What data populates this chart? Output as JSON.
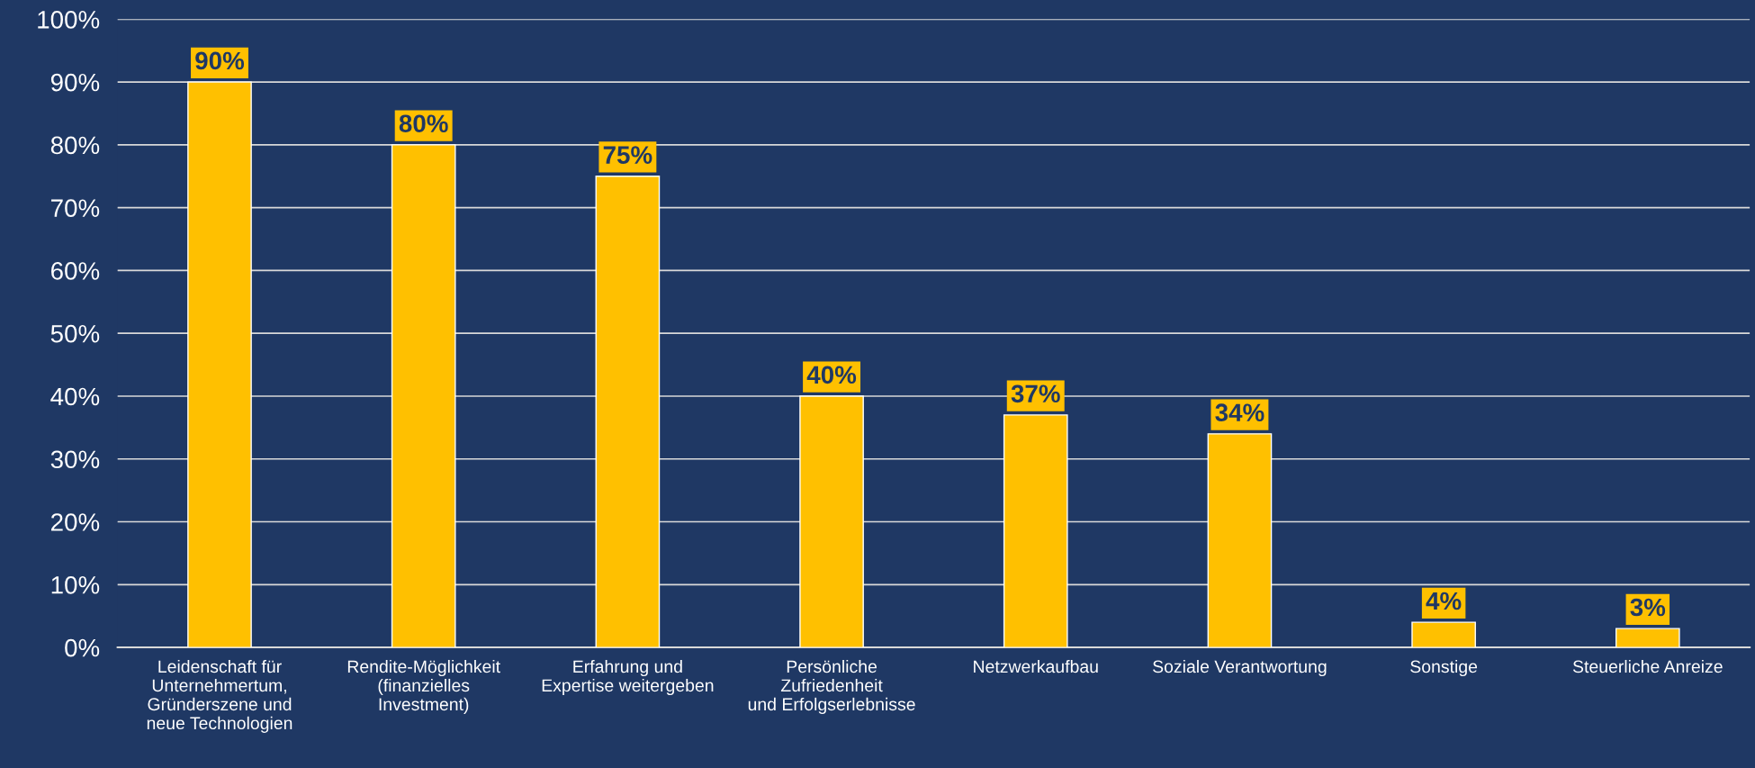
{
  "chart_data": {
    "type": "bar",
    "categories": [
      "Leidenschaft für\nUnternehmertum,\nGründerszene und\nneue Technologien",
      "Rendite-Möglichkeit\n(finanzielles\nInvestment)",
      "Erfahrung und\nExpertise weitergeben",
      "Persönliche\nZufriedenheit\nund Erfolgserlebnisse",
      "Netzwerkaufbau",
      "Soziale Verantwortung",
      "Sonstige",
      "Steuerliche Anreize"
    ],
    "values": [
      90,
      80,
      75,
      40,
      37,
      34,
      4,
      3
    ],
    "value_labels": [
      "90%",
      "80%",
      "75%",
      "40%",
      "37%",
      "34%",
      "4%",
      "3%"
    ],
    "color": "#ffc000",
    "ylim": [
      0,
      100
    ],
    "yticks": [
      {
        "value": 0,
        "label": "0%"
      },
      {
        "value": 10,
        "label": "10%"
      },
      {
        "value": 20,
        "label": "20%"
      },
      {
        "value": 30,
        "label": "30%"
      },
      {
        "value": 40,
        "label": "40%"
      },
      {
        "value": 50,
        "label": "50%"
      },
      {
        "value": 60,
        "label": "60%"
      },
      {
        "value": 70,
        "label": "70%"
      },
      {
        "value": 80,
        "label": "80%"
      },
      {
        "value": 90,
        "label": "90%"
      },
      {
        "value": 100,
        "label": "100%"
      }
    ],
    "grid": "y",
    "legend": false
  }
}
